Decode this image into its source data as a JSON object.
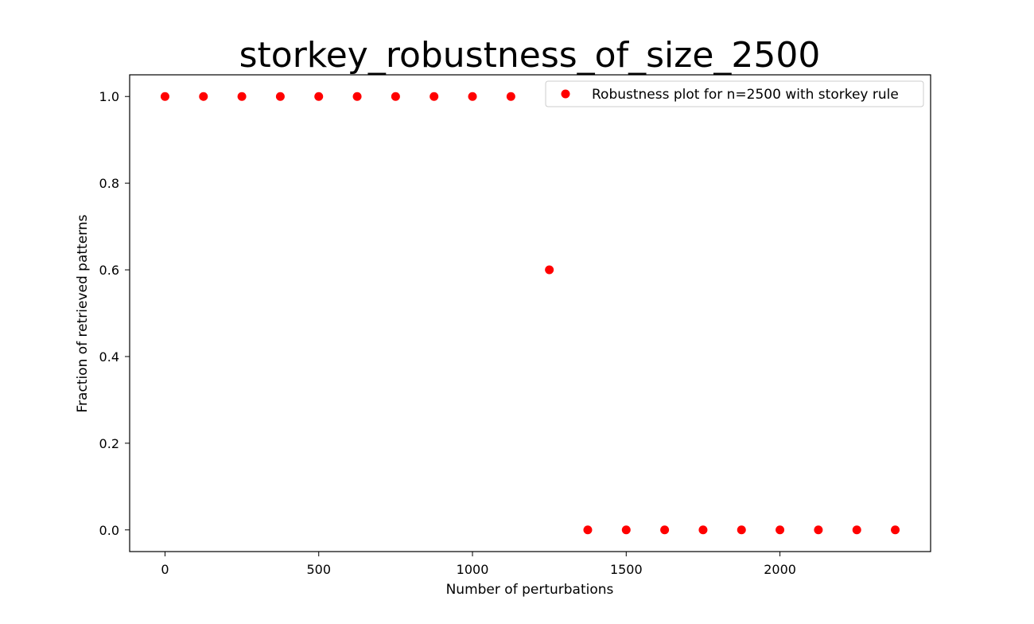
{
  "chart_data": {
    "type": "scatter",
    "title": "storkey_robustness_of_size_2500",
    "xlabel": "Number of perturbations",
    "ylabel": "Fraction of retrieved patterns",
    "xlim": [
      -115,
      2490
    ],
    "ylim": [
      -0.05,
      1.05
    ],
    "x_ticks": [
      0,
      500,
      1000,
      1500,
      2000
    ],
    "x_tick_labels": [
      "0",
      "500",
      "1000",
      "1500",
      "2000"
    ],
    "y_ticks": [
      0.0,
      0.2,
      0.4,
      0.6,
      0.8,
      1.0
    ],
    "y_tick_labels": [
      "0.0",
      "0.2",
      "0.4",
      "0.6",
      "0.8",
      "1.0"
    ],
    "grid": false,
    "legend_position": "upper-right",
    "series": [
      {
        "name": "Robustness plot for n=2500 with storkey rule",
        "color": "#ff0000",
        "marker": "circle",
        "x": [
          0,
          125,
          250,
          375,
          500,
          625,
          750,
          875,
          1000,
          1125,
          1250,
          1375,
          1500,
          1625,
          1750,
          1875,
          2000,
          2125,
          2250,
          2375
        ],
        "y": [
          1.0,
          1.0,
          1.0,
          1.0,
          1.0,
          1.0,
          1.0,
          1.0,
          1.0,
          1.0,
          0.6,
          0.0,
          0.0,
          0.0,
          0.0,
          0.0,
          0.0,
          0.0,
          0.0,
          0.0
        ]
      }
    ]
  }
}
